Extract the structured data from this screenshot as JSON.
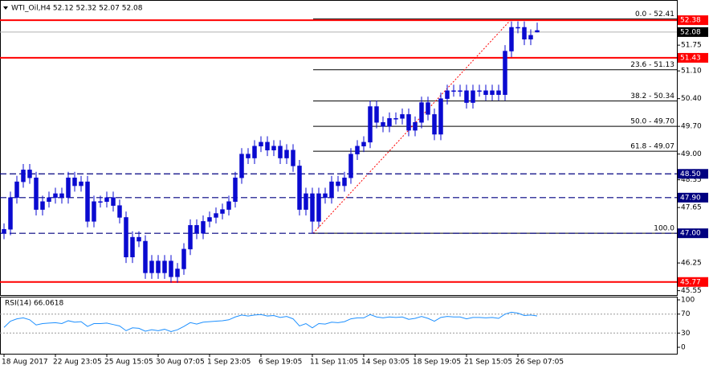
{
  "chart_data": {
    "type": "candlestick",
    "title": "WTI_Oil,H4  52.12 52.32 52.07 52.08",
    "color": "#0a0ad0",
    "categories": [
      "18 Aug 2017",
      null,
      null,
      null,
      null,
      null,
      null,
      null,
      "22 Aug 23:05",
      null,
      null,
      null,
      null,
      null,
      null,
      null,
      "25 Aug 15:05",
      null,
      null,
      null,
      null,
      null,
      null,
      null,
      "30 Aug 07:05",
      null,
      null,
      null,
      null,
      null,
      null,
      null,
      "1 Sep 23:05",
      null,
      null,
      null,
      null,
      null,
      null,
      null,
      "6 Sep 19:05",
      null,
      null,
      null,
      null,
      null,
      null,
      null,
      "11 Sep 11:05",
      null,
      null,
      null,
      null,
      null,
      null,
      null,
      "14 Sep 03:05",
      null,
      null,
      null,
      null,
      null,
      null,
      null,
      "18 Sep 19:05",
      null,
      null,
      null,
      null,
      null,
      null,
      null,
      "21 Sep 15:05",
      null,
      null,
      null,
      null,
      null,
      null,
      null,
      "26 Sep 07:05",
      null,
      null,
      null
    ],
    "ohlc": {
      "open": [
        47.0,
        47.1,
        47.9,
        48.3,
        48.6,
        48.4,
        47.6,
        47.8,
        47.9,
        48.0,
        47.9,
        48.4,
        48.2,
        48.3,
        47.3,
        47.8,
        47.8,
        47.9,
        47.7,
        47.4,
        46.4,
        46.9,
        46.8,
        46.0,
        46.3,
        46.0,
        46.3,
        45.9,
        46.1,
        46.6,
        47.2,
        47.0,
        47.3,
        47.4,
        47.5,
        47.6,
        47.8,
        48.4,
        49.0,
        48.9,
        49.2,
        49.3,
        49.1,
        49.2,
        48.9,
        49.1,
        48.7,
        47.6,
        48.0,
        47.3,
        48.0,
        47.9,
        48.3,
        48.2,
        48.4,
        49.0,
        49.2,
        49.3,
        50.2,
        49.8,
        49.7,
        49.9,
        49.9,
        50.0,
        49.6,
        49.8,
        50.3,
        50.0,
        49.5,
        50.4,
        50.6,
        50.6,
        50.6,
        50.3,
        50.6,
        50.6,
        50.5,
        50.6,
        50.5,
        51.6,
        52.2,
        52.2,
        51.9,
        52.12
      ],
      "high": [
        47.25,
        48.05,
        48.45,
        48.75,
        48.75,
        48.55,
        47.95,
        48.05,
        48.15,
        48.15,
        48.55,
        48.55,
        48.45,
        48.45,
        47.95,
        47.95,
        48.05,
        48.05,
        47.85,
        47.55,
        47.05,
        47.05,
        46.95,
        46.45,
        46.45,
        46.45,
        46.45,
        46.25,
        46.75,
        47.35,
        47.35,
        47.45,
        47.55,
        47.65,
        47.75,
        47.95,
        48.55,
        49.15,
        49.15,
        49.35,
        49.45,
        49.45,
        49.35,
        49.35,
        49.25,
        49.25,
        48.85,
        48.15,
        48.15,
        48.15,
        48.15,
        48.45,
        48.45,
        48.55,
        49.15,
        49.35,
        49.45,
        50.35,
        50.35,
        49.95,
        50.05,
        50.05,
        50.15,
        50.15,
        49.95,
        50.45,
        50.45,
        50.15,
        50.55,
        50.75,
        50.75,
        50.75,
        50.75,
        50.75,
        50.75,
        50.75,
        50.75,
        50.75,
        51.75,
        52.35,
        52.35,
        52.35,
        52.15,
        52.32
      ],
      "low": [
        46.85,
        46.95,
        47.75,
        48.15,
        48.25,
        47.45,
        47.45,
        47.65,
        47.75,
        47.75,
        47.75,
        48.05,
        48.05,
        47.15,
        47.15,
        47.65,
        47.65,
        47.55,
        47.25,
        46.25,
        46.25,
        46.65,
        45.85,
        45.85,
        45.85,
        45.85,
        45.75,
        45.75,
        45.95,
        46.45,
        46.85,
        46.85,
        47.15,
        47.25,
        47.35,
        47.45,
        47.65,
        48.25,
        48.75,
        48.75,
        49.05,
        48.95,
        48.95,
        48.75,
        48.75,
        48.55,
        47.45,
        47.45,
        47.0,
        47.15,
        47.75,
        47.75,
        48.05,
        48.05,
        48.25,
        48.85,
        49.05,
        49.15,
        49.65,
        49.55,
        49.55,
        49.75,
        49.75,
        49.45,
        49.45,
        49.65,
        49.85,
        49.35,
        49.35,
        50.25,
        50.45,
        50.45,
        50.15,
        50.15,
        50.45,
        50.35,
        50.35,
        50.35,
        50.35,
        51.45,
        52.05,
        51.75,
        51.75,
        52.07
      ],
      "close": [
        47.1,
        47.9,
        48.3,
        48.6,
        48.4,
        47.6,
        47.8,
        47.9,
        48.0,
        47.9,
        48.4,
        48.2,
        48.3,
        47.3,
        47.8,
        47.8,
        47.9,
        47.7,
        47.4,
        46.4,
        46.9,
        46.8,
        46.0,
        46.3,
        46.0,
        46.3,
        45.9,
        46.1,
        46.6,
        47.2,
        47.0,
        47.3,
        47.4,
        47.5,
        47.6,
        47.8,
        48.4,
        49.0,
        48.9,
        49.2,
        49.3,
        49.1,
        49.2,
        48.9,
        49.1,
        48.7,
        47.6,
        48.0,
        47.3,
        48.0,
        47.9,
        48.3,
        48.2,
        48.4,
        49.0,
        49.2,
        49.3,
        50.2,
        49.8,
        49.7,
        49.9,
        49.9,
        50.0,
        49.6,
        49.8,
        50.3,
        50.0,
        49.5,
        50.4,
        50.6,
        50.6,
        50.6,
        50.3,
        50.6,
        50.6,
        50.5,
        50.6,
        50.5,
        51.6,
        52.2,
        52.2,
        51.9,
        52.0,
        52.08
      ]
    },
    "ylim": [
      45.42,
      52.89
    ],
    "yticks": [
      51.75,
      {
        "value": 51.1,
        "label": "51.10"
      },
      {
        "value": 50.4,
        "label": "50.40"
      },
      {
        "value": 49.7,
        "label": "49.70"
      },
      {
        "value": 49.0,
        "label": "49.00"
      },
      48.35,
      47.65,
      46.25,
      45.55
    ],
    "levels": [
      {
        "value": 52.38,
        "color": "#ff0000",
        "style": "solid"
      },
      {
        "value": 52.08,
        "color": "#000000",
        "style": "current"
      },
      {
        "value": 51.43,
        "color": "#ff0000",
        "style": "solid"
      },
      {
        "value": {
          "value": 48.5,
          "label": "48.50"
        },
        "color": "#000080",
        "style": "dashed"
      },
      {
        "value": {
          "value": 47.9,
          "label": "47.90"
        },
        "color": "#000080",
        "style": "dashed"
      },
      {
        "value": {
          "value": 47.0,
          "label": "47.00"
        },
        "color": "#000080",
        "style": "dashed"
      },
      {
        "value": 45.77,
        "color": "#ff0000",
        "style": "solid"
      }
    ],
    "fib": [
      {
        "label": "0.0 - 52.41",
        "value": 52.41
      },
      {
        "label": "23.6 - 51.13",
        "value": 51.13
      },
      {
        "label": "38.2 - 50.34",
        "value": 50.34
      },
      {
        "label": "50.0 - 49.70",
        "value": 49.7
      },
      {
        "label": "61.8 - 49.07",
        "value": 49.07
      },
      {
        "label": "100.0",
        "value": 47.0
      }
    ],
    "rsi": {
      "title": "RSI(14) 66.0618",
      "color": "#1e90ff",
      "values": [
        42,
        55,
        60,
        62,
        58,
        47,
        50,
        51,
        52,
        50,
        56,
        53,
        54,
        44,
        50,
        50,
        51,
        48,
        45,
        35,
        41,
        40,
        34,
        37,
        35,
        38,
        33,
        37,
        44,
        52,
        49,
        53,
        54,
        55,
        56,
        58,
        64,
        68,
        66,
        68,
        69,
        66,
        67,
        63,
        65,
        60,
        45,
        50,
        41,
        50,
        49,
        53,
        52,
        54,
        60,
        62,
        62,
        69,
        64,
        62,
        64,
        63,
        64,
        59,
        61,
        65,
        61,
        55,
        63,
        65,
        64,
        64,
        60,
        63,
        63,
        62,
        63,
        61,
        70,
        74,
        72,
        67,
        68,
        66.0618
      ],
      "ylim": [
        0,
        100
      ],
      "yticks": [
        100,
        70,
        30,
        0
      ],
      "levels": [
        70,
        30
      ]
    }
  }
}
